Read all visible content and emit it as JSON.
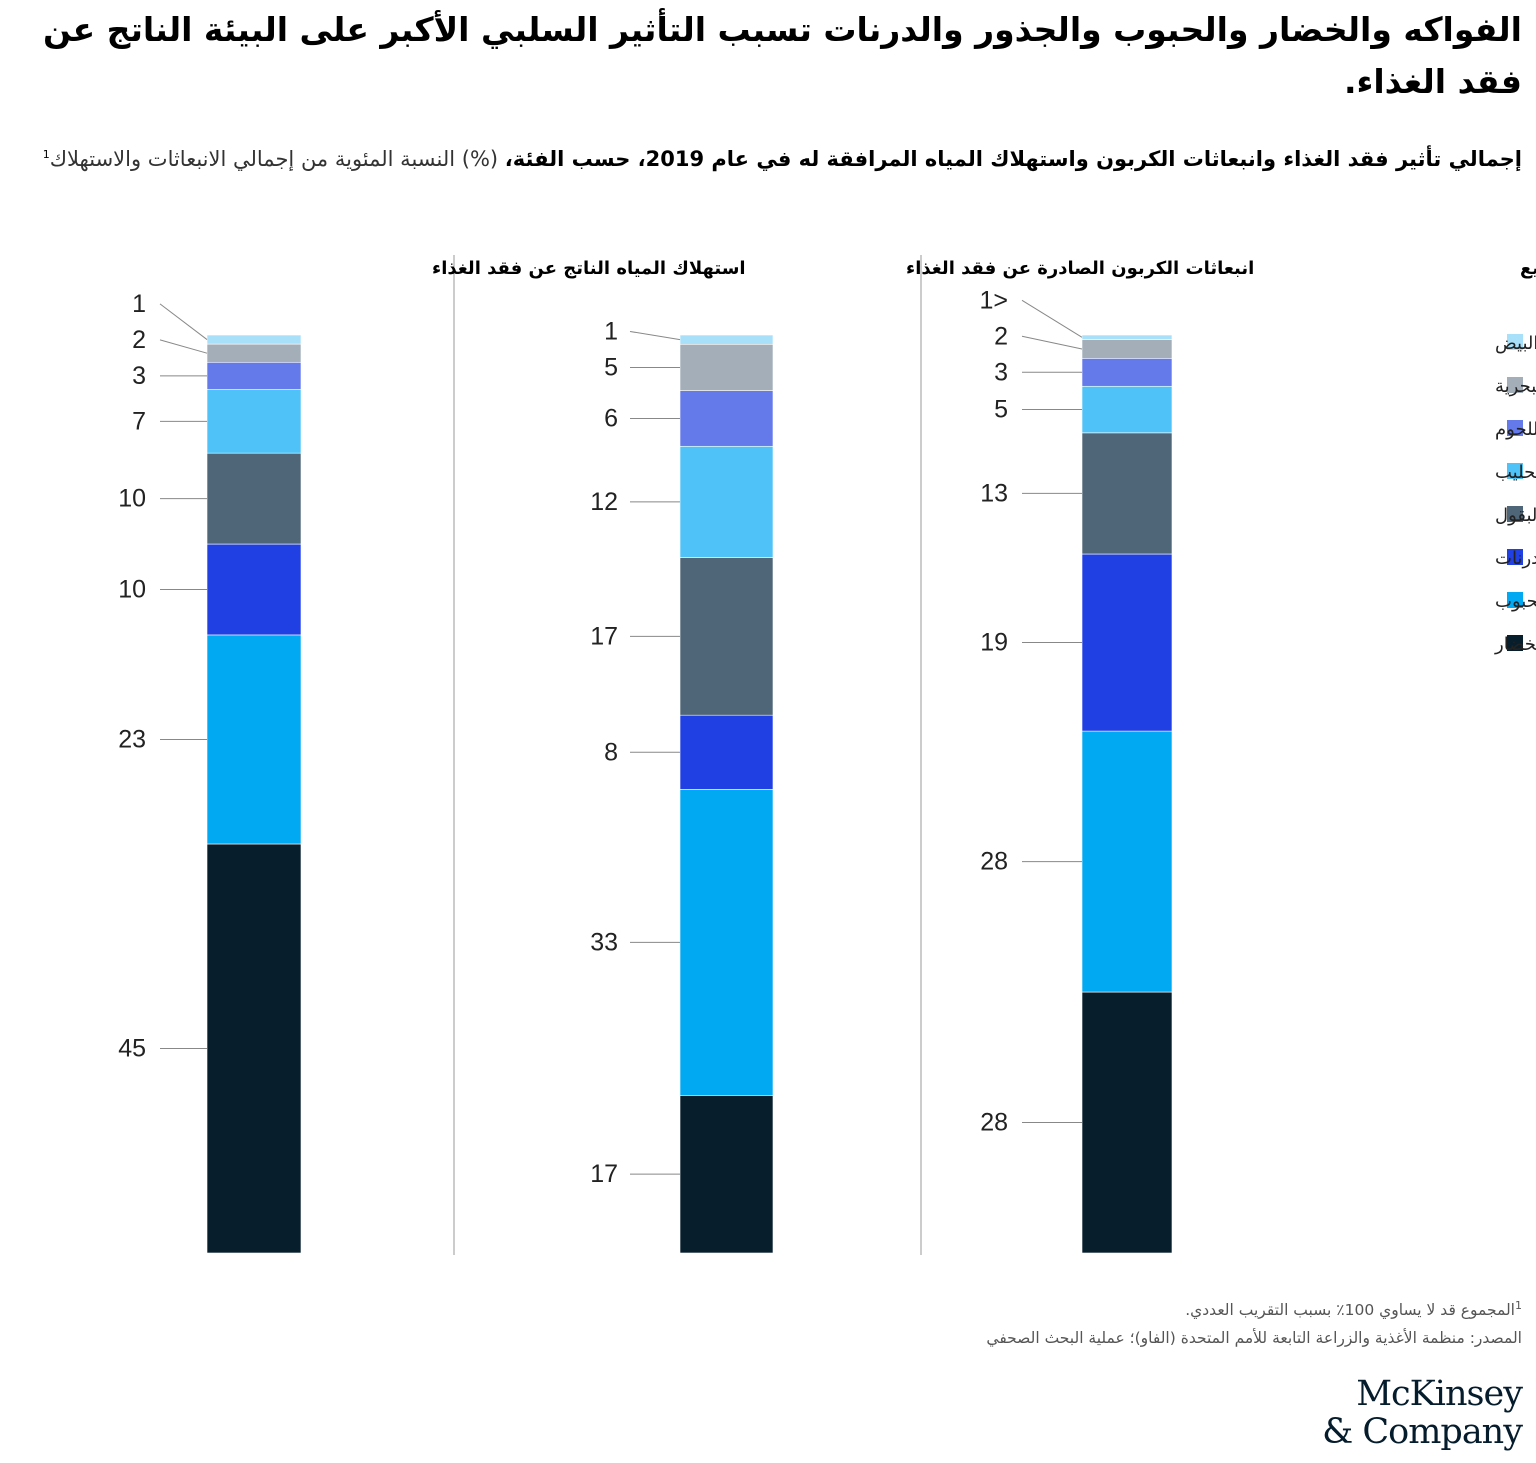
{
  "title": "الفواكه والخضار والحبوب والجذور والدرنات تسبب التأثير السلبي الأكبر على البيئة الناتج عن فقد الغذاء.",
  "subtitle": {
    "bold": "إجمالي تأثير فقد الغذاء وانبعاثات الكربون واستهلاك المياه المرافقة له في عام 2019، حسب الفئة،",
    "light": "(%) النسبة المئوية من إجمالي الانبعاثات والاستهلاك",
    "footnote_mark": "1"
  },
  "footnotes": {
    "note1_mark": "1",
    "note1": "المجموع قد لا يساوي 100٪ بسبب التقريب العددي.",
    "source": "المصدر: منظمة الأغذية والزراعة التابعة للأمم المتحدة (الفاو)؛ عملية البحث الصحفي"
  },
  "logo": {
    "line1": "McKinsey",
    "line2": "& Company"
  },
  "chart_data": {
    "type": "bar",
    "stacked": true,
    "unit": "%",
    "categories": [
      "الفواكه والخضار",
      "الحبوب",
      "الجذور والدرنات",
      "بذور الزيت والبقول",
      "الحليب",
      "اللحوم",
      "السمك والمأكولات البحرية",
      "البيض"
    ],
    "colors": [
      "#071e2d",
      "#00a9f2",
      "#2140e3",
      "#4f6578",
      "#4fc3f7",
      "#6479ea",
      "#a3aeb8",
      "#a8e0fa"
    ],
    "legend": {
      "placement": "right",
      "order": "top-to-bottom reversed"
    },
    "series": [
      {
        "name": "استهلاك المياه الناتج عن فقد الغذاء",
        "values": [
          45,
          23,
          10,
          10,
          7,
          3,
          2,
          1
        ],
        "labels": [
          "45",
          "23",
          "10",
          "10",
          "7",
          "3",
          "2",
          "1"
        ]
      },
      {
        "name": "انبعاثات الكربون الصادرة عن فقد الغذاء",
        "values": [
          17,
          33,
          8,
          17,
          12,
          6,
          5,
          1
        ],
        "labels": [
          "17",
          "33",
          "8",
          "17",
          "12",
          "6",
          "5",
          "1"
        ]
      },
      {
        "name": "الفقد في مرحلة التصنيع",
        "values": [
          28,
          28,
          19,
          13,
          5,
          3,
          2,
          0.5
        ],
        "labels": [
          "28",
          "28",
          "19",
          "13",
          "5",
          "3",
          "2",
          "1>"
        ]
      }
    ]
  }
}
